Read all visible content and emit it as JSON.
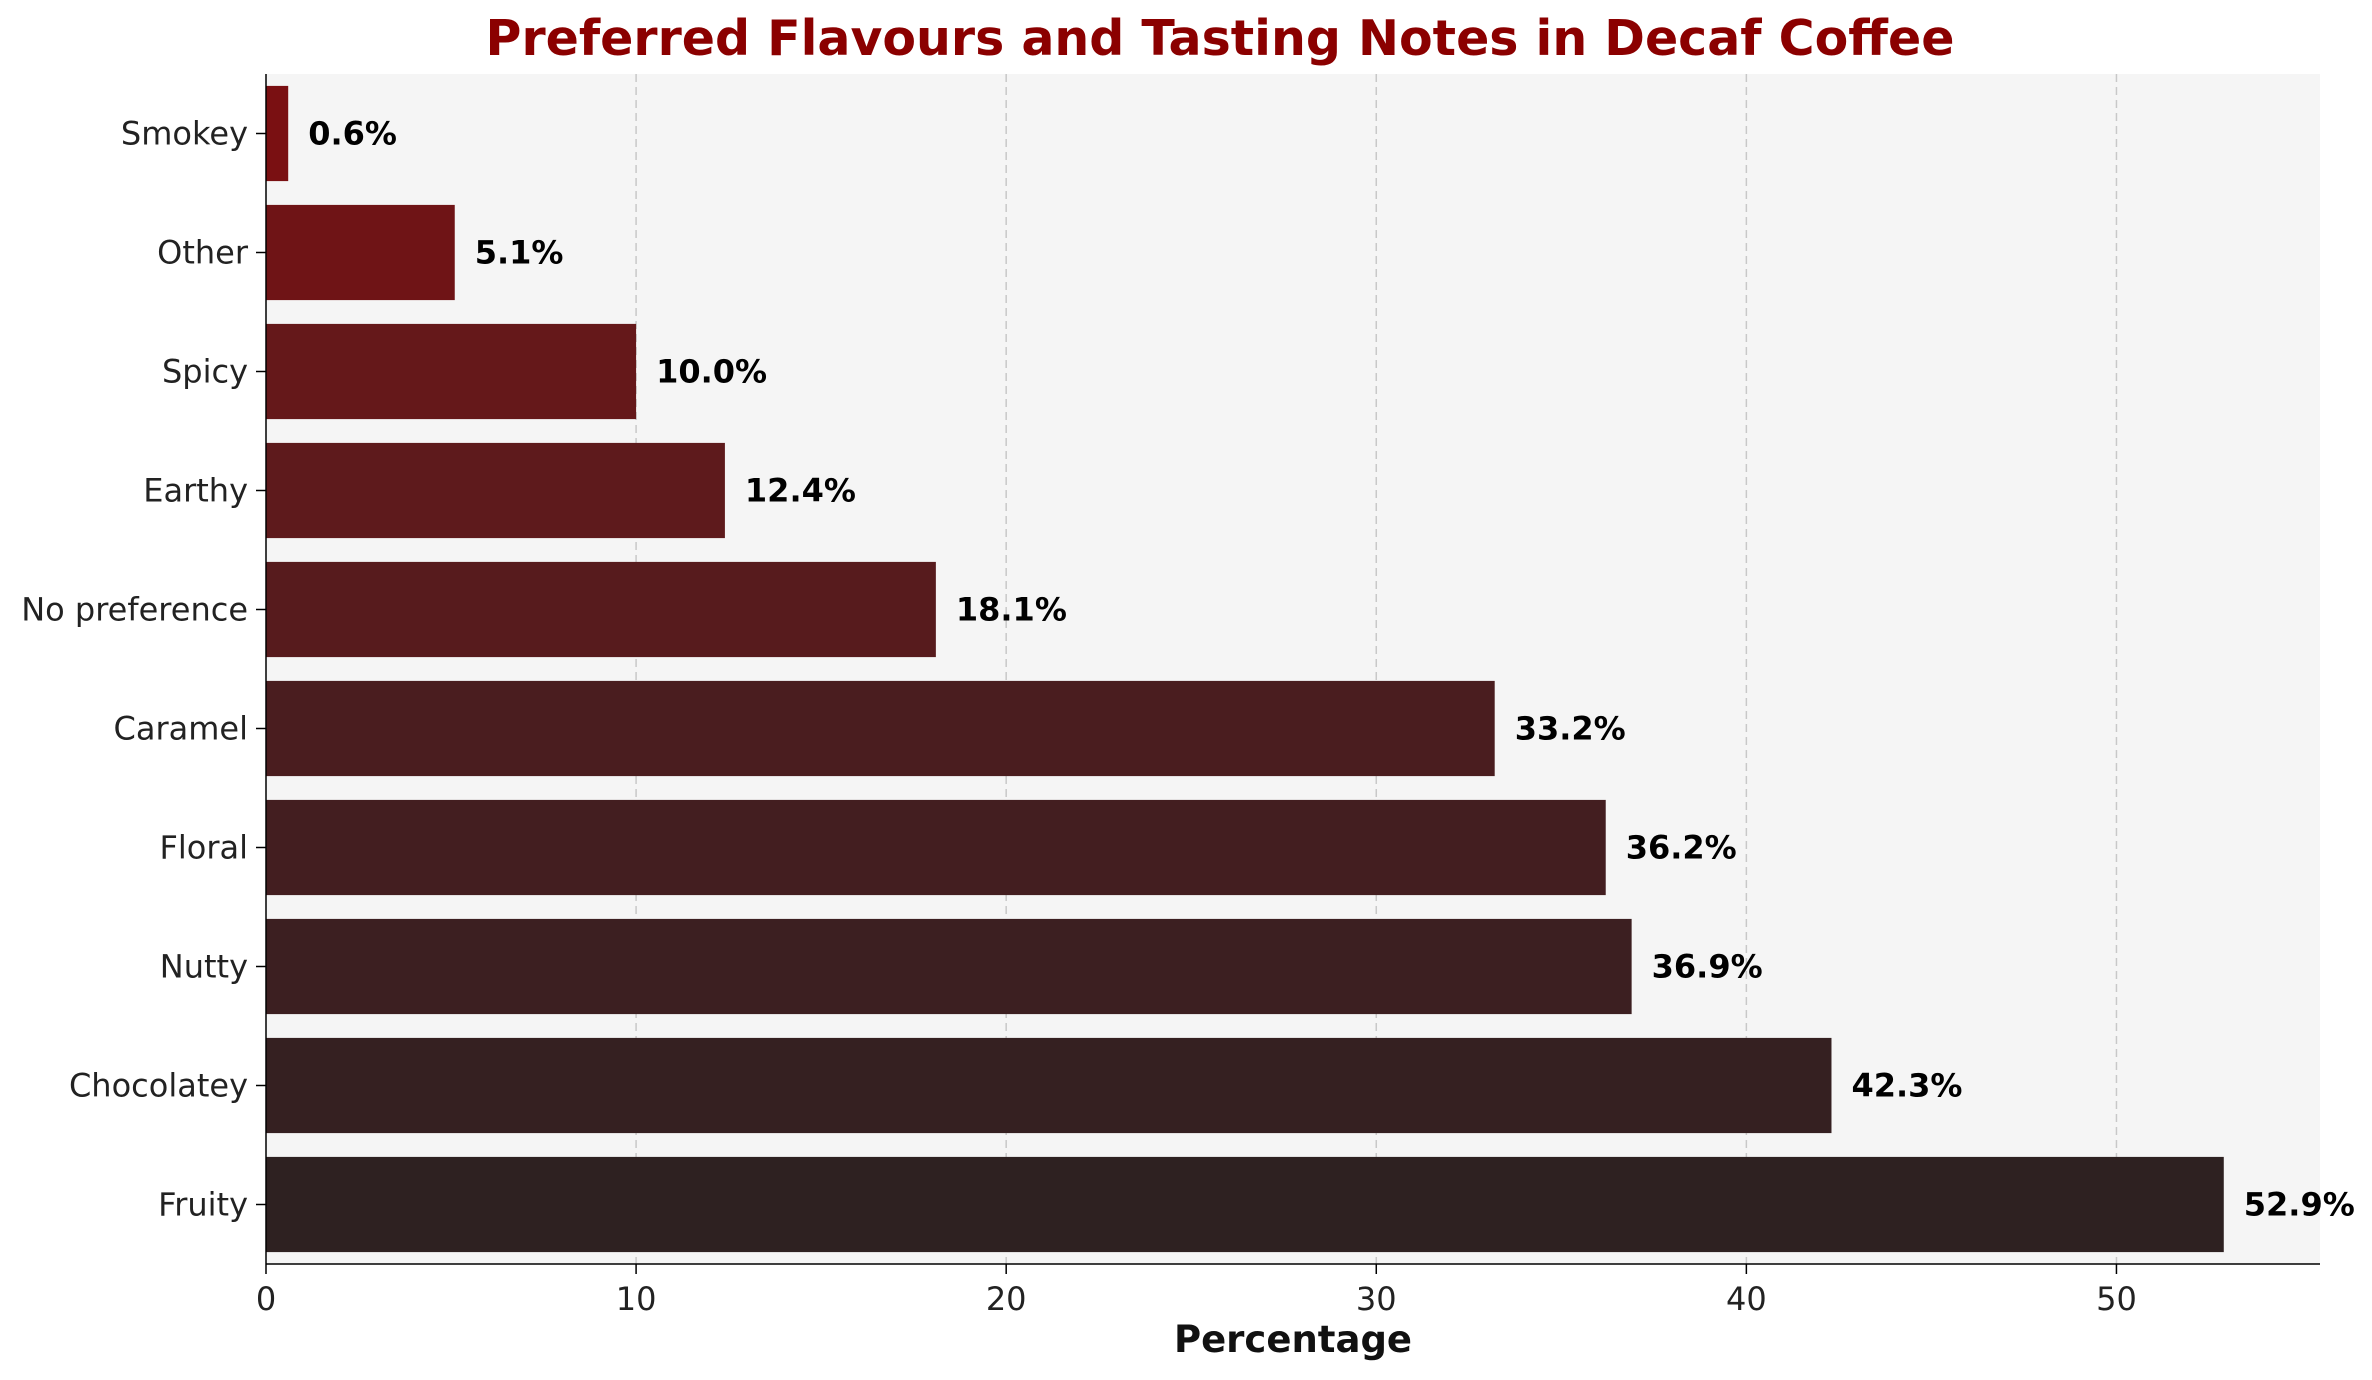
{
  "chart_data": {
    "type": "bar",
    "orientation": "horizontal",
    "title": "Preferred Flavours and Tasting Notes in Decaf Coffee",
    "xlabel": "Percentage",
    "ylabel": "",
    "categories": [
      "Fruity",
      "Chocolatey",
      "Nutty",
      "Floral",
      "Caramel",
      "No preference",
      "Earthy",
      "Spicy",
      "Other",
      "Smokey"
    ],
    "values": [
      52.9,
      42.3,
      36.9,
      36.2,
      33.2,
      18.1,
      12.4,
      10.0,
      5.1,
      0.6
    ],
    "value_labels": [
      "52.9%",
      "42.3%",
      "36.9%",
      "36.2%",
      "33.2%",
      "18.1%",
      "12.4%",
      "10.0%",
      "5.1%",
      "0.6%"
    ],
    "xlim": [
      0,
      55.5
    ],
    "xticks": [
      0,
      10,
      20,
      30,
      40,
      50
    ],
    "xtick_labels": [
      "0",
      "10",
      "20",
      "30",
      "40",
      "50"
    ],
    "grid": "vertical dashed",
    "legend": "none",
    "colors": {
      "title": "#8b0000",
      "plot_background": "#f5f5f5",
      "grid": "#c8c8c8",
      "bar_colors": [
        "#2e2121",
        "#352021",
        "#3c1f21",
        "#431e20",
        "#4a1d1f",
        "#571b1d",
        "#5e1a1c",
        "#65181a",
        "#6f1416",
        "#7a1012"
      ]
    }
  }
}
